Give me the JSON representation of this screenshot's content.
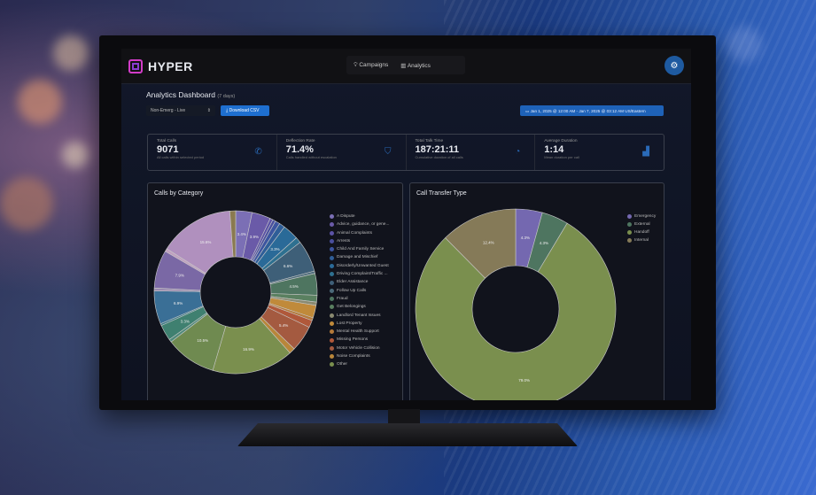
{
  "header": {
    "brand": "HYPER",
    "nav": [
      {
        "label": "Campaigns",
        "icon": "lightbulb-icon"
      },
      {
        "label": "Analytics",
        "icon": "bar-chart-icon"
      }
    ],
    "settings_icon": "gear-icon"
  },
  "page": {
    "title": "Analytics Dashboard",
    "subtitle": "(7 days)",
    "select_value": "Non-Emerg - Live",
    "download_label": "Download CSV",
    "date_range": "Jan 1, 2025 @ 12:00 AM - Jan 7, 2025 @ 03:12 AM US/Eastern"
  },
  "stats": [
    {
      "label": "Total Calls",
      "value": "9071",
      "sub": "All calls within selected period",
      "icon": "phone-icon"
    },
    {
      "label": "Deflection Rate",
      "value": "71.4%",
      "sub": "Calls handled without escalation",
      "icon": "shield-icon"
    },
    {
      "label": "Total Talk Time",
      "value": "187:21:11",
      "sub": "Cumulative duration of all calls",
      "icon": "clock-icon"
    },
    {
      "label": "Average Duration",
      "value": "1:14",
      "sub": "Mean duration per call",
      "icon": "bar-chart-icon"
    }
  ],
  "chart_data": [
    {
      "type": "pie",
      "title": "Calls by Category",
      "legend": "right",
      "slices": [
        {
          "name": "A Dispute",
          "value": 3.4,
          "color": "#7b6fb5"
        },
        {
          "name": "Advice, guidance, or gene...",
          "value": 3.9,
          "color": "#6a5aa8"
        },
        {
          "name": "Animal Complaints",
          "value": 0.6,
          "color": "#5b52a6"
        },
        {
          "name": "Arrests",
          "value": 0.6,
          "color": "#4a4f9e"
        },
        {
          "name": "Child And Family Service",
          "value": 1.0,
          "color": "#3d55a0"
        },
        {
          "name": "Damage and Mischief",
          "value": 1.2,
          "color": "#2f5e98"
        },
        {
          "name": "Disorderly/Unwanted Guest",
          "value": 3.3,
          "color": "#2a6a98"
        },
        {
          "name": "Driving Complaint/Traffic ...",
          "value": 1.2,
          "color": "#2e7090"
        },
        {
          "name": "Elder Assistance",
          "value": 6.6,
          "color": "#3e5f78"
        },
        {
          "name": "Follow Up Calls",
          "value": 0.5,
          "color": "#4b6a7a"
        },
        {
          "name": "Fraud",
          "value": 4.5,
          "color": "#4e7560"
        },
        {
          "name": "Get Belongings",
          "value": 1.4,
          "color": "#5a8060"
        },
        {
          "name": "Landlord Tenant Issues",
          "value": 0.7,
          "color": "#8a8a70"
        },
        {
          "name": "Lost Property",
          "value": 2.6,
          "color": "#c08a3a"
        },
        {
          "name": "Mental Health Support",
          "value": 0.6,
          "color": "#b57a3a"
        },
        {
          "name": "Missing Persons",
          "value": 1.5,
          "color": "#b0583a"
        },
        {
          "name": "Motor Vehicle Collision",
          "value": 5.4,
          "color": "#a45a40"
        },
        {
          "name": "Noise Complaints",
          "value": 1.2,
          "color": "#b8863a"
        },
        {
          "name": "Other",
          "value": 16.9,
          "color": "#7a8f4e"
        },
        {
          "name": "",
          "value": 10.5,
          "color": "#6f8a50"
        },
        {
          "name": "",
          "value": 0.6,
          "color": "#4f8a7a"
        },
        {
          "name": "",
          "value": 3.3,
          "color": "#3f8070"
        },
        {
          "name": "",
          "value": 0.4,
          "color": "#3a7a86"
        },
        {
          "name": "",
          "value": 6.9,
          "color": "#3a6f96"
        },
        {
          "name": "",
          "value": 0.6,
          "color": "#9a8ab0"
        },
        {
          "name": "",
          "value": 7.9,
          "color": "#7a68a5"
        },
        {
          "name": "",
          "value": 0.6,
          "color": "#c0a0c0"
        },
        {
          "name": "",
          "value": 15.6,
          "color": "#b090be"
        },
        {
          "name": "",
          "value": 1.2,
          "color": "#8a7a50"
        }
      ]
    },
    {
      "type": "pie",
      "title": "Call Transfer Type",
      "legend": "top-right",
      "slices": [
        {
          "name": "Emergency",
          "value": 4.3,
          "color": "#7468b0"
        },
        {
          "name": "External",
          "value": 4.3,
          "color": "#4e7560"
        },
        {
          "name": "Handoff",
          "value": 79.0,
          "color": "#7a8f4e"
        },
        {
          "name": "Internal",
          "value": 12.4,
          "color": "#857a58"
        }
      ]
    }
  ]
}
